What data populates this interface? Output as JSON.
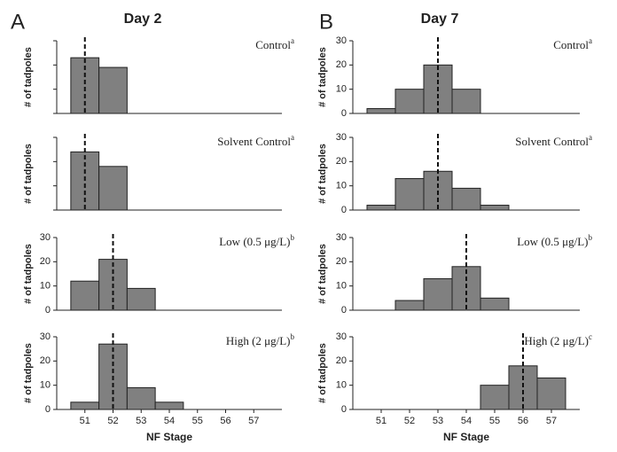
{
  "chart_data": [
    {
      "type": "histogram",
      "panel": "A",
      "title": "Day 2",
      "annotation": "Control",
      "annotation_sup": "a",
      "bins": [
        50.5,
        51.5,
        52.5,
        53.5,
        54.5,
        55.5,
        56.5,
        57.5
      ],
      "counts": [
        23,
        19,
        0,
        0,
        0,
        0,
        0
      ],
      "color": "#808080",
      "xlim": [
        50,
        58
      ],
      "xticks": [
        51,
        52,
        53,
        54,
        55,
        56,
        57
      ],
      "ylim": [
        0,
        30
      ],
      "yticks": [
        0,
        10,
        20,
        30
      ],
      "ylabel": "# of tadpoles",
      "reference_line": 51,
      "show_xtick_labels": false,
      "show_ytick_labels": false
    },
    {
      "type": "histogram",
      "annotation": "Solvent Control",
      "annotation_sup": "a",
      "bins": [
        50.5,
        51.5,
        52.5,
        53.5,
        54.5,
        55.5,
        56.5,
        57.5
      ],
      "counts": [
        24,
        18,
        0,
        0,
        0,
        0,
        0
      ],
      "color": "#808080",
      "xlim": [
        50,
        58
      ],
      "xticks": [
        51,
        52,
        53,
        54,
        55,
        56,
        57
      ],
      "ylim": [
        0,
        30
      ],
      "yticks": [
        0,
        10,
        20,
        30
      ],
      "ylabel": "# of tadpoles",
      "reference_line": 51,
      "show_xtick_labels": false,
      "show_ytick_labels": false
    },
    {
      "type": "histogram",
      "annotation": "Low (0.5 μg/L)",
      "annotation_sup": "b",
      "bins": [
        50.5,
        51.5,
        52.5,
        53.5,
        54.5,
        55.5,
        56.5,
        57.5
      ],
      "counts": [
        12,
        21,
        9,
        0,
        0,
        0,
        0
      ],
      "color": "#808080",
      "xlim": [
        50,
        58
      ],
      "xticks": [
        51,
        52,
        53,
        54,
        55,
        56,
        57
      ],
      "ylim": [
        0,
        30
      ],
      "yticks": [
        0,
        10,
        20,
        30
      ],
      "ylabel": "# of tadpoles",
      "reference_line": 52,
      "show_xtick_labels": false,
      "show_ytick_labels": true
    },
    {
      "type": "histogram",
      "annotation": "High (2 μg/L)",
      "annotation_sup": "b",
      "bins": [
        50.5,
        51.5,
        52.5,
        53.5,
        54.5,
        55.5,
        56.5,
        57.5
      ],
      "counts": [
        3,
        27,
        9,
        3,
        0,
        0,
        0
      ],
      "color": "#808080",
      "xlim": [
        50,
        58
      ],
      "xticks": [
        51,
        52,
        53,
        54,
        55,
        56,
        57
      ],
      "ylim": [
        0,
        30
      ],
      "yticks": [
        0,
        10,
        20,
        30
      ],
      "ylabel": "# of tadpoles",
      "xlabel": "NF Stage",
      "reference_line": 52,
      "show_xtick_labels": true,
      "show_ytick_labels": true
    },
    {
      "type": "histogram",
      "panel": "B",
      "title": "Day 7",
      "annotation": "Control",
      "annotation_sup": "a",
      "bins": [
        50.5,
        51.5,
        52.5,
        53.5,
        54.5,
        55.5,
        56.5,
        57.5
      ],
      "counts": [
        2,
        10,
        20,
        10,
        0,
        0,
        0
      ],
      "color": "#808080",
      "xlim": [
        50,
        58
      ],
      "xticks": [
        51,
        52,
        53,
        54,
        55,
        56,
        57
      ],
      "ylim": [
        0,
        30
      ],
      "yticks": [
        0,
        10,
        20,
        30
      ],
      "ylabel": "# of tadpoles",
      "reference_line": 53,
      "show_xtick_labels": false,
      "show_ytick_labels": true
    },
    {
      "type": "histogram",
      "annotation": "Solvent Control",
      "annotation_sup": "a",
      "bins": [
        50.5,
        51.5,
        52.5,
        53.5,
        54.5,
        55.5,
        56.5,
        57.5
      ],
      "counts": [
        2,
        13,
        16,
        9,
        2,
        0,
        0
      ],
      "color": "#808080",
      "xlim": [
        50,
        58
      ],
      "xticks": [
        51,
        52,
        53,
        54,
        55,
        56,
        57
      ],
      "ylim": [
        0,
        30
      ],
      "yticks": [
        0,
        10,
        20,
        30
      ],
      "ylabel": "# of tadpoles",
      "reference_line": 53,
      "show_xtick_labels": false,
      "show_ytick_labels": true
    },
    {
      "type": "histogram",
      "annotation": "Low (0.5 μg/L)",
      "annotation_sup": "b",
      "bins": [
        50.5,
        51.5,
        52.5,
        53.5,
        54.5,
        55.5,
        56.5,
        57.5
      ],
      "counts": [
        0,
        4,
        13,
        18,
        5,
        0,
        0
      ],
      "color": "#808080",
      "xlim": [
        50,
        58
      ],
      "xticks": [
        51,
        52,
        53,
        54,
        55,
        56,
        57
      ],
      "ylim": [
        0,
        30
      ],
      "yticks": [
        0,
        10,
        20,
        30
      ],
      "ylabel": "# of tadpoles",
      "reference_line": 54,
      "show_xtick_labels": false,
      "show_ytick_labels": true
    },
    {
      "type": "histogram",
      "annotation": "High (2 μg/L)",
      "annotation_sup": "c",
      "bins": [
        50.5,
        51.5,
        52.5,
        53.5,
        54.5,
        55.5,
        56.5,
        57.5
      ],
      "counts": [
        0,
        0,
        0,
        0,
        10,
        18,
        13
      ],
      "color": "#808080",
      "xlim": [
        50,
        58
      ],
      "xticks": [
        51,
        52,
        53,
        54,
        55,
        56,
        57
      ],
      "ylim": [
        0,
        30
      ],
      "yticks": [
        0,
        10,
        20,
        30
      ],
      "ylabel": "# of tadpoles",
      "xlabel": "NF Stage",
      "reference_line": 56,
      "show_xtick_labels": true,
      "show_ytick_labels": true
    }
  ]
}
